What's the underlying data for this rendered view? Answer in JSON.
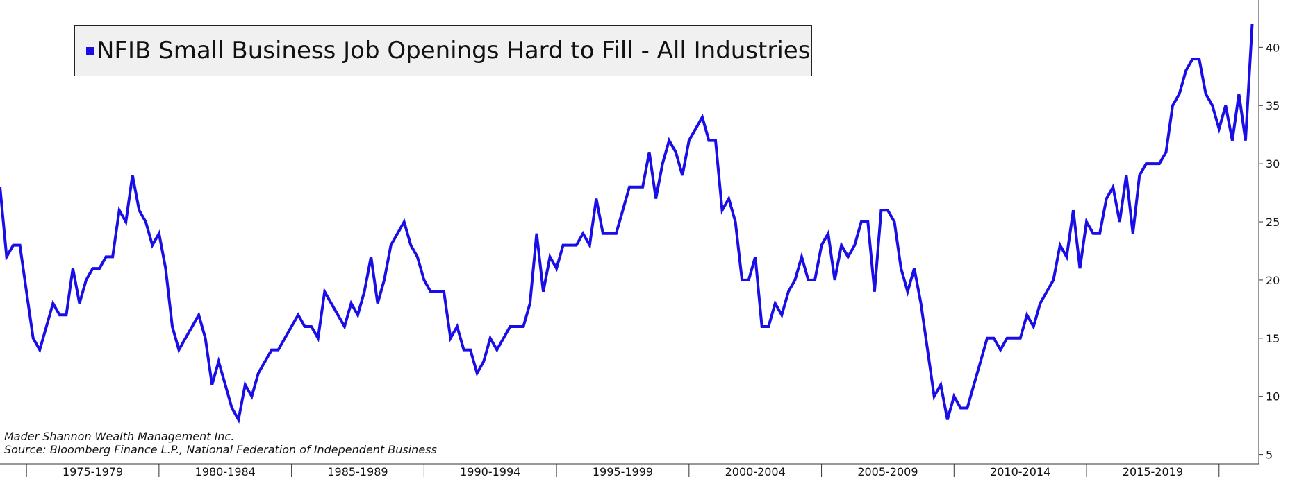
{
  "chart_data": {
    "type": "line",
    "title": "",
    "xlabel": "",
    "ylabel": "",
    "ylim": [
      4.5,
      43
    ],
    "yticks": [
      5,
      10,
      15,
      20,
      25,
      30,
      35,
      40
    ],
    "y_axis_position": "right",
    "grid": false,
    "legend_position": "top-left",
    "x_periods": [
      "1975-1979",
      "1980-1984",
      "1985-1989",
      "1990-1994",
      "1995-1999",
      "2000-2004",
      "2005-2009",
      "2010-2014",
      "2015-2019"
    ],
    "x_start_year": 1974.0,
    "x_end_year": 2021.5,
    "series": [
      {
        "name": "NFIB Small Business Job Openings Hard to Fill - All Industries",
        "color": "#1a0ee6",
        "x": [
          1974.0,
          1974.25,
          1974.5,
          1974.75,
          1975.0,
          1975.25,
          1975.5,
          1975.75,
          1976.0,
          1976.25,
          1976.5,
          1976.75,
          1977.0,
          1977.25,
          1977.5,
          1977.75,
          1978.0,
          1978.25,
          1978.5,
          1978.75,
          1979.0,
          1979.25,
          1979.5,
          1979.75,
          1980.0,
          1980.25,
          1980.5,
          1980.75,
          1981.0,
          1981.25,
          1981.5,
          1981.75,
          1982.0,
          1982.25,
          1982.5,
          1982.75,
          1983.0,
          1983.25,
          1983.5,
          1983.75,
          1984.0,
          1984.25,
          1984.5,
          1984.75,
          1985.0,
          1985.25,
          1985.5,
          1985.75,
          1986.0,
          1986.25,
          1986.5,
          1986.75,
          1987.0,
          1987.25,
          1987.5,
          1987.75,
          1988.0,
          1988.25,
          1988.5,
          1988.75,
          1989.0,
          1989.25,
          1989.5,
          1989.75,
          1990.0,
          1990.25,
          1990.5,
          1990.75,
          1991.0,
          1991.25,
          1991.5,
          1991.75,
          1992.0,
          1992.25,
          1992.5,
          1992.75,
          1993.0,
          1993.25,
          1993.5,
          1993.75,
          1994.0,
          1994.25,
          1994.5,
          1994.75,
          1995.0,
          1995.25,
          1995.5,
          1995.75,
          1996.0,
          1996.25,
          1996.5,
          1996.75,
          1997.0,
          1997.25,
          1997.5,
          1997.75,
          1998.0,
          1998.25,
          1998.5,
          1998.75,
          1999.0,
          1999.25,
          1999.5,
          1999.75,
          2000.0,
          2000.25,
          2000.5,
          2000.75,
          2001.0,
          2001.25,
          2001.5,
          2001.75,
          2002.0,
          2002.25,
          2002.5,
          2002.75,
          2003.0,
          2003.25,
          2003.5,
          2003.75,
          2004.0,
          2004.25,
          2004.5,
          2004.75,
          2005.0,
          2005.25,
          2005.5,
          2005.75,
          2006.0,
          2006.25,
          2006.5,
          2006.75,
          2007.0,
          2007.25,
          2007.5,
          2007.75,
          2008.0,
          2008.25,
          2008.5,
          2008.75,
          2009.0,
          2009.25,
          2009.5,
          2009.75,
          2010.0,
          2010.25,
          2010.5,
          2010.75,
          2011.0,
          2011.25,
          2011.5,
          2011.75,
          2012.0,
          2012.25,
          2012.5,
          2012.75,
          2013.0,
          2013.25,
          2013.5,
          2013.75,
          2014.0,
          2014.25,
          2014.5,
          2014.75,
          2015.0,
          2015.25,
          2015.5,
          2015.75,
          2016.0,
          2016.25,
          2016.5,
          2016.75,
          2017.0,
          2017.25,
          2017.5,
          2017.75,
          2018.0,
          2018.25,
          2018.5,
          2018.75,
          2019.0,
          2019.25,
          2019.5,
          2019.75,
          2020.0,
          2020.25,
          2020.5,
          2020.75,
          2021.0,
          2021.25
        ],
        "values": [
          28,
          22,
          23,
          23,
          19,
          15,
          14,
          16,
          18,
          17,
          17,
          21,
          18,
          20,
          21,
          21,
          22,
          22,
          26,
          25,
          29,
          26,
          25,
          23,
          24,
          21,
          16,
          14,
          15,
          16,
          17,
          15,
          11,
          13,
          11,
          9,
          8,
          11,
          10,
          12,
          13,
          14,
          14,
          15,
          16,
          17,
          16,
          16,
          15,
          19,
          18,
          17,
          16,
          18,
          17,
          19,
          22,
          18,
          20,
          23,
          24,
          25,
          23,
          22,
          20,
          19,
          19,
          19,
          15,
          16,
          14,
          14,
          12,
          13,
          15,
          14,
          15,
          16,
          16,
          16,
          18,
          24,
          19,
          22,
          21,
          23,
          23,
          23,
          24,
          23,
          27,
          24,
          24,
          24,
          26,
          28,
          28,
          28,
          31,
          27,
          30,
          32,
          31,
          29,
          32,
          33,
          34,
          32,
          32,
          26,
          27,
          25,
          20,
          20,
          22,
          16,
          16,
          18,
          17,
          19,
          20,
          22,
          20,
          20,
          23,
          24,
          20,
          23,
          22,
          23,
          25,
          25,
          19,
          26,
          26,
          25,
          21,
          19,
          21,
          18,
          14,
          10,
          11,
          8,
          10,
          9,
          9,
          11,
          13,
          15,
          15,
          14,
          15,
          15,
          15,
          17,
          16,
          18,
          19,
          20,
          23,
          22,
          26,
          21,
          25,
          24,
          24,
          27,
          28,
          25,
          29,
          24,
          29,
          30,
          30,
          30,
          31,
          35,
          36,
          38,
          39,
          39,
          36,
          35,
          33,
          35,
          32,
          36,
          32,
          42
        ]
      }
    ]
  },
  "credits": {
    "line1": "Mader Shannon Wealth Management Inc.",
    "line2": "Source: Bloomberg Finance L.P., National Federation of Independent Business"
  }
}
